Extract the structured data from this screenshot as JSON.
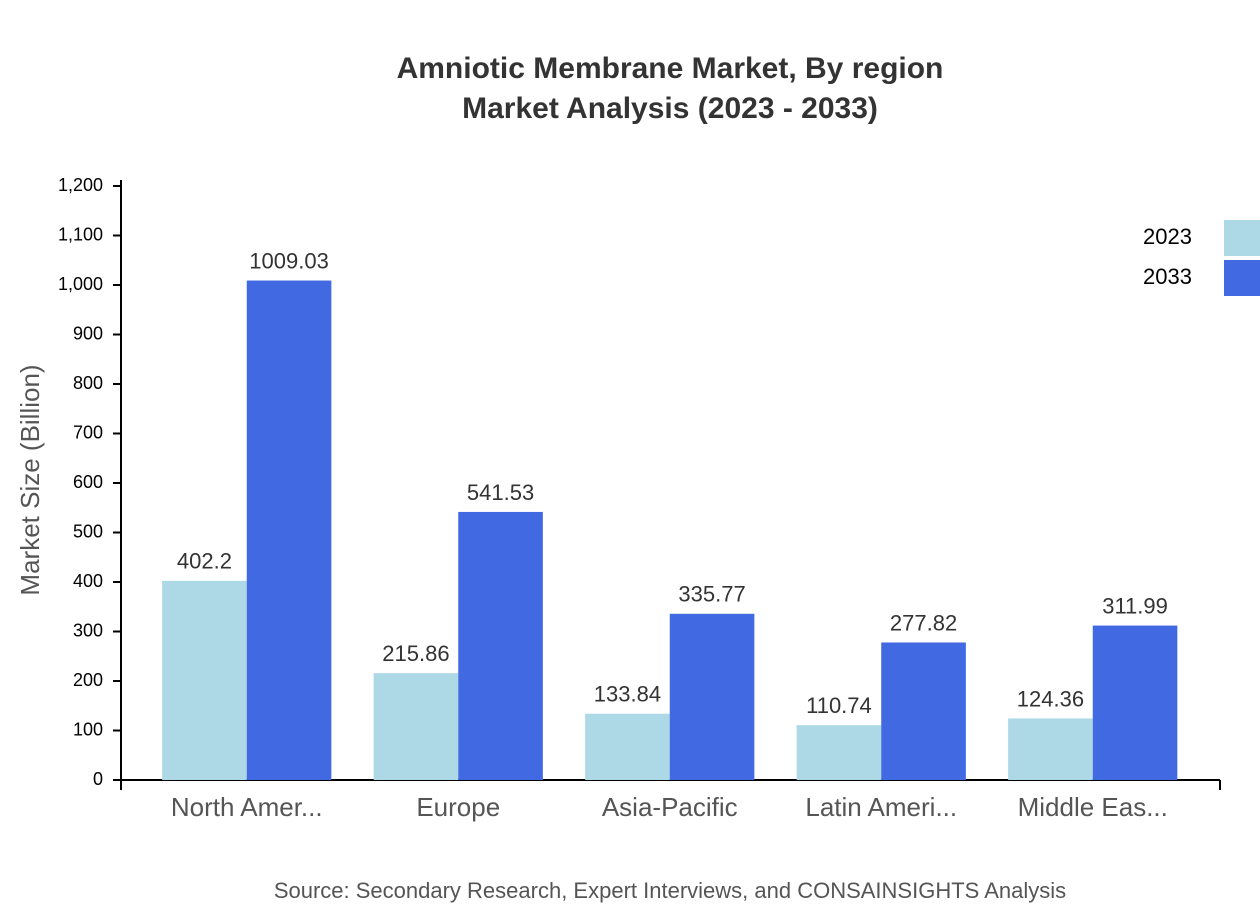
{
  "chart_data": {
    "type": "bar",
    "title": "Amniotic Membrane Market, By region",
    "subtitle": "Market Analysis (2023 - 2033)",
    "y_label": "Market Size (Billion)",
    "source": "Source: Secondary Research, Expert Interviews, and CONSAINSIGHTS Analysis",
    "categories": [
      "North Amer...",
      "Europe",
      "Asia-Pacific",
      "Latin Ameri...",
      "Middle Eas..."
    ],
    "series": [
      {
        "name": "2023",
        "color": "#add8e6",
        "values": [
          402.2,
          215.86,
          133.84,
          110.74,
          124.36
        ]
      },
      {
        "name": "2033",
        "color": "#4169e1",
        "values": [
          1009.03,
          541.53,
          335.77,
          277.82,
          311.99
        ]
      }
    ],
    "ylim": [
      0,
      1200
    ],
    "yticks": [
      0,
      100,
      200,
      300,
      400,
      500,
      600,
      700,
      800,
      900,
      {
        "value": 1000,
        "label": "1,000"
      },
      {
        "value": 1100,
        "label": "1,100"
      },
      {
        "value": 1200,
        "label": "1,200"
      }
    ],
    "legend": "top-right"
  }
}
